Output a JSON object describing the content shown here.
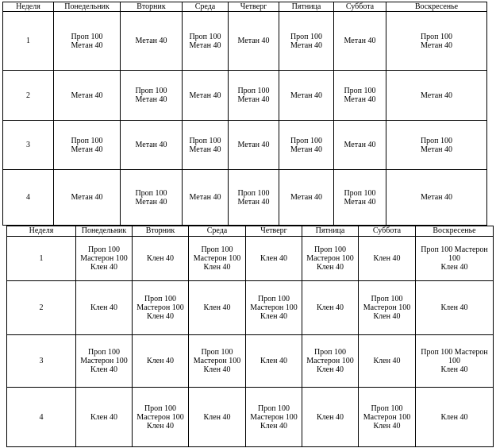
{
  "table1": {
    "headers": [
      "Неделя",
      "Понедельник",
      "Вторник",
      "Среда",
      "Четверг",
      "Пятница",
      "Суббота",
      "Воскресенье"
    ],
    "rows": [
      [
        "1",
        "Проп 100\nМетан 40",
        "Метан 40",
        "Проп 100\nМетан 40",
        "Метан 40",
        "Проп 100\nМетан 40",
        "Метан 40",
        "Проп 100\nМетан 40"
      ],
      [
        "2",
        "Метан 40",
        "Проп 100\nМетан 40",
        "Метан 40",
        "Проп 100\nМетан 40",
        "Метан 40",
        "Проп 100\nМетан 40",
        "Метан 40"
      ],
      [
        "3",
        "Проп 100\nМетан 40",
        "Метан 40",
        "Проп 100\nМетан 40",
        "Метан 40",
        "Проп 100\nМетан 40",
        "Метан 40",
        "Проп 100\nМетан 40"
      ],
      [
        "4",
        "Метан 40",
        "Проп 100\nМетан 40",
        "Метан 40",
        "Проп 100\nМетан 40",
        "Метан 40",
        "Проп 100\nМетан 40",
        "Метан 40"
      ]
    ]
  },
  "table2": {
    "headers": [
      "Неделя",
      "Понедельник",
      "Вторник",
      "Среда",
      "Четверг",
      "Пятница",
      "Суббота",
      "Воскресенье"
    ],
    "rows": [
      [
        "1",
        "Проп 100\nМастерон 100\nКлен 40",
        "Клен 40",
        "Проп 100\nМастерон 100\nКлен 40",
        "Клен 40",
        "Проп 100\nМастерон 100\nКлен 40",
        "Клен 40",
        "Проп 100 Мастерон 100\nКлен 40"
      ],
      [
        "2",
        "Клен 40",
        "Проп 100\nМастерон 100\nКлен 40",
        "Клен 40",
        "Проп 100\nМастерон 100\nКлен 40",
        "Клен 40",
        "Проп 100\nМастерон 100\nКлен 40",
        "Клен 40"
      ],
      [
        "3",
        "Проп 100\nМастерон 100\nКлен 40",
        "Клен 40",
        "Проп 100\nМастерон 100\nКлен 40",
        "Клен 40",
        "Проп 100\nМастерон 100\nКлен 40",
        "Клен 40",
        "Проп 100 Мастерон 100\nКлен 40"
      ],
      [
        "4",
        "Клен 40",
        "Проп 100\nМастерон 100\nКлен 40",
        "Клен 40",
        "Проп 100\nМастерон 100\nКлен 40",
        "Клен 40",
        "Проп 100\nМастерон 100\nКлен 40",
        "Клен 40"
      ]
    ]
  }
}
